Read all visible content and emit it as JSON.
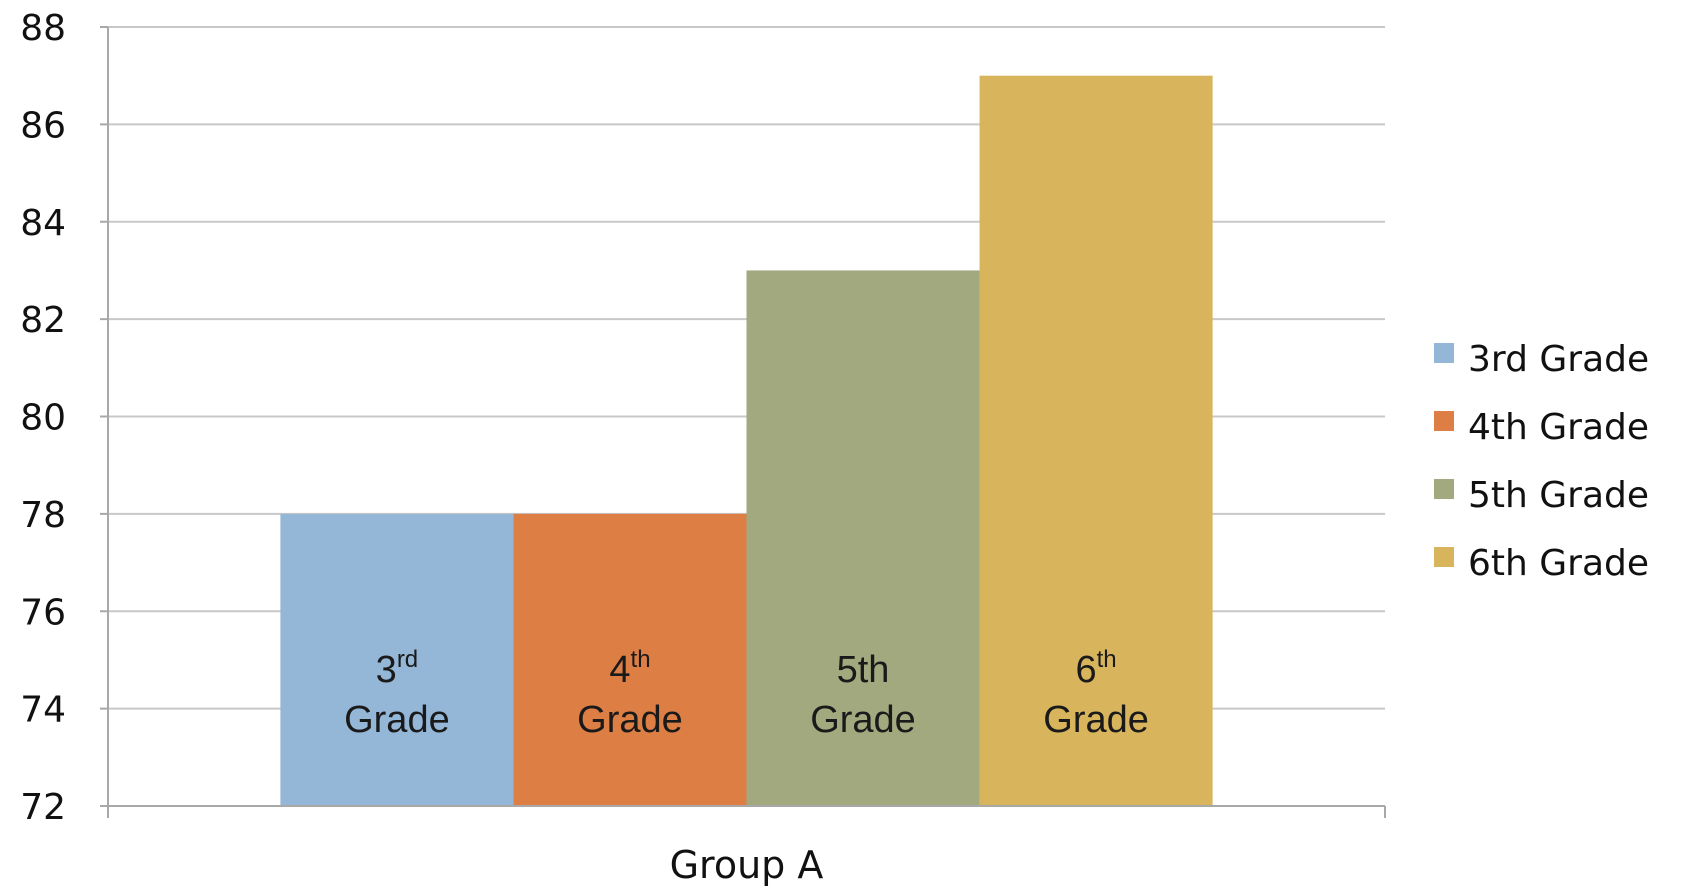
{
  "chart_data": {
    "type": "bar",
    "categories": [
      "Group A"
    ],
    "series": [
      {
        "name": "3rd Grade",
        "values": [
          78
        ],
        "color": "#94b6d7",
        "label_main": "3",
        "label_sup": "rd",
        "label_line2": "Grade"
      },
      {
        "name": "4th Grade",
        "values": [
          78
        ],
        "color": "#dd7e45",
        "label_main": "4",
        "label_sup": "th",
        "label_line2": "Grade"
      },
      {
        "name": "5th Grade",
        "values": [
          83
        ],
        "color": "#a2a97f",
        "label_main": "5th",
        "label_sup": "",
        "label_line2": "Grade"
      },
      {
        "name": "6th Grade",
        "values": [
          87
        ],
        "color": "#d8b45c",
        "label_main": "6",
        "label_sup": "th",
        "label_line2": "Grade"
      }
    ],
    "title": "",
    "xlabel": "",
    "ylabel": "",
    "ylim": [
      72,
      88
    ],
    "yticks": [
      72,
      74,
      76,
      78,
      80,
      82,
      84,
      86,
      88
    ],
    "grid": true,
    "legend_position": "right"
  }
}
